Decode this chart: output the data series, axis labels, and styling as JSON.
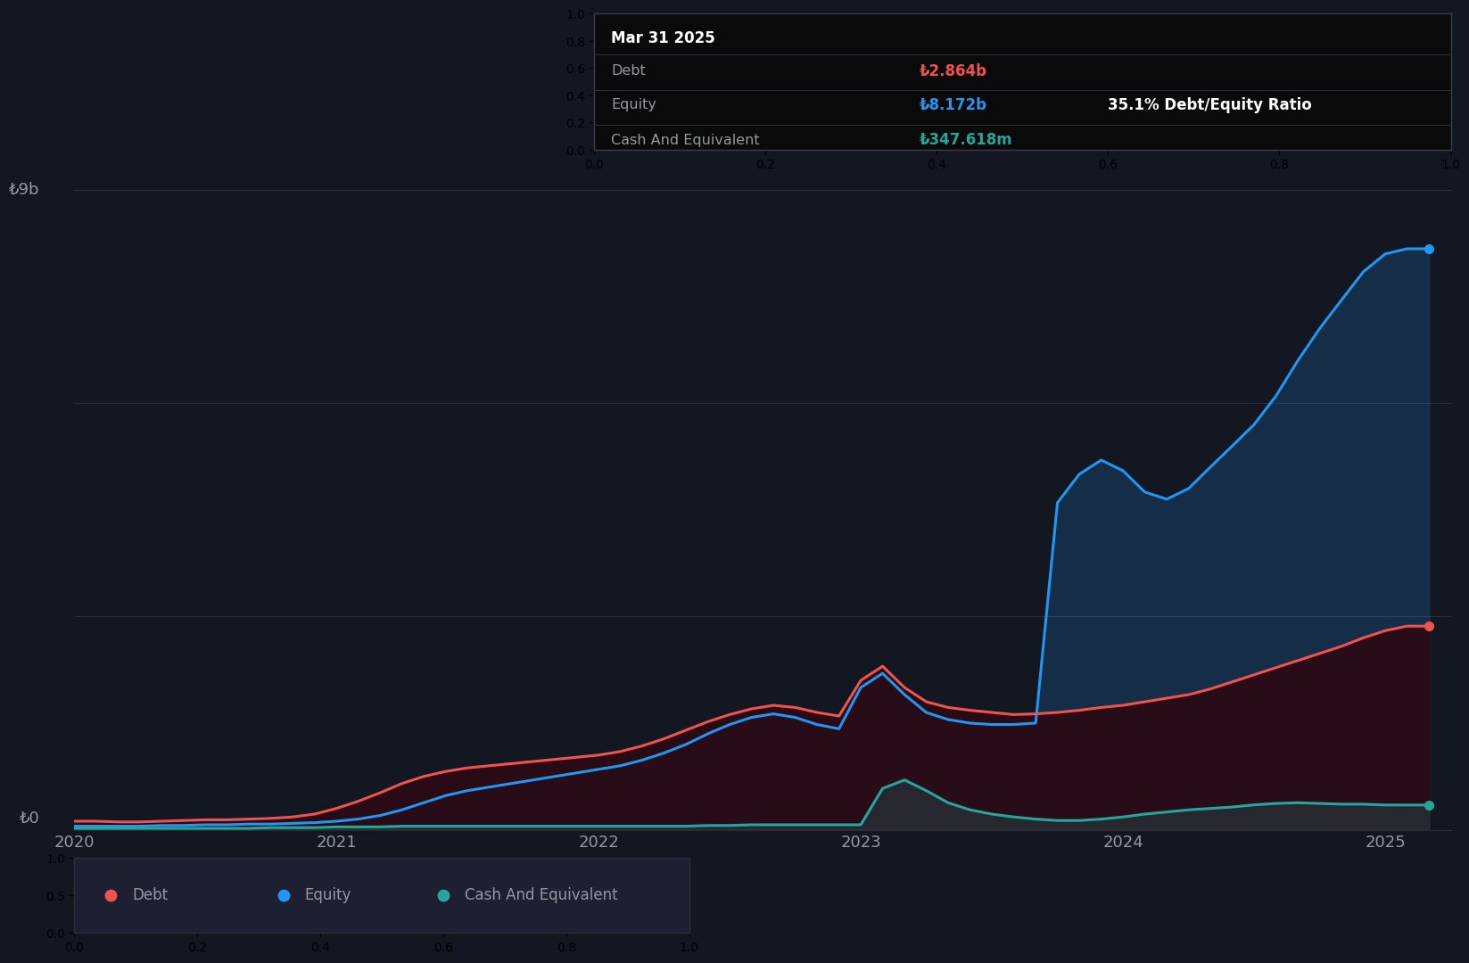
{
  "background_color": "#131722",
  "plot_bg_color": "#131722",
  "grid_color": "#2a2e39",
  "tooltip": {
    "date": "Mar 31 2025",
    "debt_label": "Debt",
    "debt_value": "₺2.864b",
    "equity_label": "Equity",
    "equity_value": "₺8.172b",
    "ratio_text": "35.1% Debt/Equity Ratio",
    "cash_label": "Cash And Equivalent",
    "cash_value": "₺347.618m",
    "bg_color": "#0a0a0a",
    "border_color": "#3a3e4a",
    "title_color": "#ffffff",
    "label_color": "#9598a1",
    "debt_val_color": "#ef5350",
    "equity_val_color": "#2196f3",
    "cash_val_color": "#26a69a",
    "ratio_color": "#ffffff"
  },
  "ylabel_text": "₺9b",
  "y0_text": "₺0",
  "years": [
    2020,
    2021,
    2022,
    2023,
    2024,
    2025
  ],
  "debt_color": "#ef5350",
  "equity_color": "#2196f3",
  "cash_color": "#26a69a",
  "x": [
    0.0,
    0.083,
    0.167,
    0.25,
    0.333,
    0.417,
    0.5,
    0.583,
    0.667,
    0.75,
    0.833,
    0.917,
    1.0,
    1.083,
    1.167,
    1.25,
    1.333,
    1.417,
    1.5,
    1.583,
    1.667,
    1.75,
    1.833,
    1.917,
    2.0,
    2.083,
    2.167,
    2.25,
    2.333,
    2.417,
    2.5,
    2.583,
    2.667,
    2.75,
    2.833,
    2.917,
    3.0,
    3.083,
    3.167,
    3.25,
    3.333,
    3.417,
    3.5,
    3.583,
    3.667,
    3.75,
    3.833,
    3.917,
    4.0,
    4.083,
    4.167,
    4.25,
    4.333,
    4.417,
    4.5,
    4.583,
    4.667,
    4.75,
    4.833,
    4.917,
    5.0,
    5.083,
    5.167
  ],
  "debt": [
    0.12,
    0.12,
    0.11,
    0.11,
    0.12,
    0.13,
    0.14,
    0.14,
    0.15,
    0.16,
    0.18,
    0.22,
    0.3,
    0.4,
    0.52,
    0.65,
    0.75,
    0.82,
    0.87,
    0.9,
    0.93,
    0.96,
    0.99,
    1.02,
    1.05,
    1.1,
    1.18,
    1.28,
    1.4,
    1.52,
    1.62,
    1.7,
    1.75,
    1.72,
    1.65,
    1.6,
    2.1,
    2.3,
    2.0,
    1.8,
    1.72,
    1.68,
    1.65,
    1.62,
    1.63,
    1.65,
    1.68,
    1.72,
    1.75,
    1.8,
    1.85,
    1.9,
    1.98,
    2.08,
    2.18,
    2.28,
    2.38,
    2.48,
    2.58,
    2.7,
    2.8,
    2.864,
    2.864
  ],
  "equity": [
    0.05,
    0.05,
    0.05,
    0.05,
    0.06,
    0.06,
    0.07,
    0.07,
    0.08,
    0.08,
    0.09,
    0.1,
    0.12,
    0.15,
    0.2,
    0.28,
    0.38,
    0.48,
    0.55,
    0.6,
    0.65,
    0.7,
    0.75,
    0.8,
    0.85,
    0.9,
    0.98,
    1.08,
    1.2,
    1.35,
    1.48,
    1.58,
    1.63,
    1.58,
    1.48,
    1.42,
    2.0,
    2.2,
    1.9,
    1.65,
    1.55,
    1.5,
    1.48,
    1.48,
    1.5,
    4.6,
    5.0,
    5.2,
    5.05,
    4.75,
    4.65,
    4.8,
    5.1,
    5.4,
    5.7,
    6.1,
    6.6,
    7.05,
    7.45,
    7.85,
    8.1,
    8.172,
    8.172
  ],
  "cash": [
    0.02,
    0.02,
    0.02,
    0.02,
    0.02,
    0.02,
    0.02,
    0.02,
    0.02,
    0.03,
    0.03,
    0.03,
    0.04,
    0.04,
    0.04,
    0.05,
    0.05,
    0.05,
    0.05,
    0.05,
    0.05,
    0.05,
    0.05,
    0.05,
    0.05,
    0.05,
    0.05,
    0.05,
    0.05,
    0.06,
    0.06,
    0.07,
    0.07,
    0.07,
    0.07,
    0.07,
    0.07,
    0.58,
    0.7,
    0.55,
    0.38,
    0.28,
    0.22,
    0.18,
    0.15,
    0.13,
    0.13,
    0.15,
    0.18,
    0.22,
    0.25,
    0.28,
    0.3,
    0.32,
    0.35,
    0.37,
    0.38,
    0.37,
    0.36,
    0.36,
    0.348,
    0.3476,
    0.3476
  ],
  "ylim": [
    0,
    9.5
  ],
  "xlim": [
    0,
    5.25
  ],
  "legend": [
    {
      "label": "Debt",
      "color": "#ef5350"
    },
    {
      "label": "Equity",
      "color": "#2196f3"
    },
    {
      "label": "Cash And Equivalent",
      "color": "#26a69a"
    }
  ]
}
